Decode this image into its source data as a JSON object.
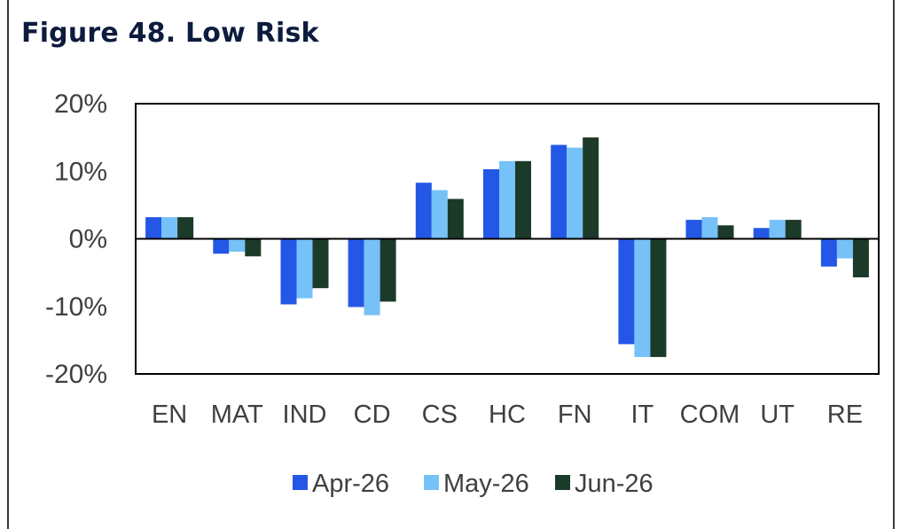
{
  "figure": {
    "title": "Figure 48. Low Risk"
  },
  "colors": {
    "series": [
      "#2457e6",
      "#76c1f8",
      "#1b3a2a"
    ],
    "axis": "#000000",
    "text": "#404040"
  },
  "chart_data": {
    "type": "bar",
    "title": "Figure 48. Low Risk",
    "xlabel": "",
    "ylabel": "",
    "ylim": [
      -20,
      20
    ],
    "yticks": [
      20,
      10,
      0,
      -10,
      -20
    ],
    "ytick_labels": [
      "20%",
      "10%",
      "0%",
      "-10%",
      "-20%"
    ],
    "grid": false,
    "legend_position": "bottom",
    "categories": [
      "EN",
      "MAT",
      "IND",
      "CD",
      "CS",
      "HC",
      "FN",
      "IT",
      "COM",
      "UT",
      "RE"
    ],
    "series": [
      {
        "name": "Apr-26",
        "values": [
          3.2,
          -2.2,
          -9.7,
          -10.1,
          8.3,
          10.3,
          13.9,
          -15.6,
          2.8,
          1.6,
          -4.1
        ]
      },
      {
        "name": "May-26",
        "values": [
          3.2,
          -1.9,
          -8.8,
          -11.3,
          7.2,
          11.5,
          13.5,
          -17.5,
          3.2,
          2.8,
          -2.9
        ]
      },
      {
        "name": "Jun-26",
        "values": [
          3.2,
          -2.6,
          -7.3,
          -9.3,
          5.9,
          11.5,
          15.0,
          -17.5,
          2.0,
          2.8,
          -5.7
        ]
      }
    ]
  }
}
